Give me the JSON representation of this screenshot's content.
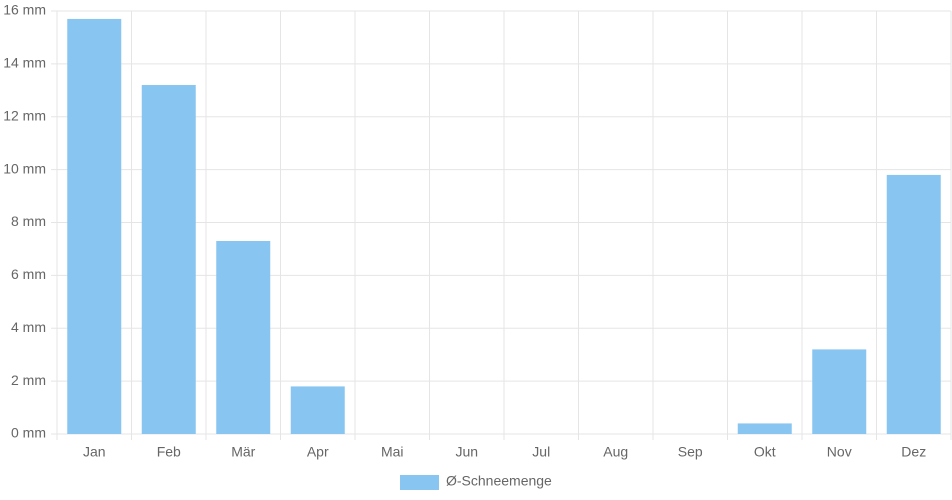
{
  "chart_data": {
    "type": "bar",
    "categories": [
      "Jan",
      "Feb",
      "Mär",
      "Apr",
      "Mai",
      "Jun",
      "Jul",
      "Aug",
      "Sep",
      "Okt",
      "Nov",
      "Dez"
    ],
    "series": [
      {
        "name": "Ø-Schneemenge",
        "color": "#88c5f1",
        "values": [
          15.7,
          13.2,
          7.3,
          1.8,
          0,
          0,
          0,
          0,
          0,
          0.4,
          3.2,
          9.8
        ]
      }
    ],
    "ylim": [
      0,
      16
    ],
    "yticks": [
      {
        "value": 0,
        "label": "0 mm"
      },
      {
        "value": 2,
        "label": "2 mm"
      },
      {
        "value": 4,
        "label": "4 mm"
      },
      {
        "value": 6,
        "label": "6 mm"
      },
      {
        "value": 8,
        "label": "8 mm"
      },
      {
        "value": 10,
        "label": "10 mm"
      },
      {
        "value": 12,
        "label": "12 mm"
      },
      {
        "value": 14,
        "label": "14 mm"
      },
      {
        "value": 16,
        "label": "16 mm"
      }
    ],
    "grid": true
  }
}
